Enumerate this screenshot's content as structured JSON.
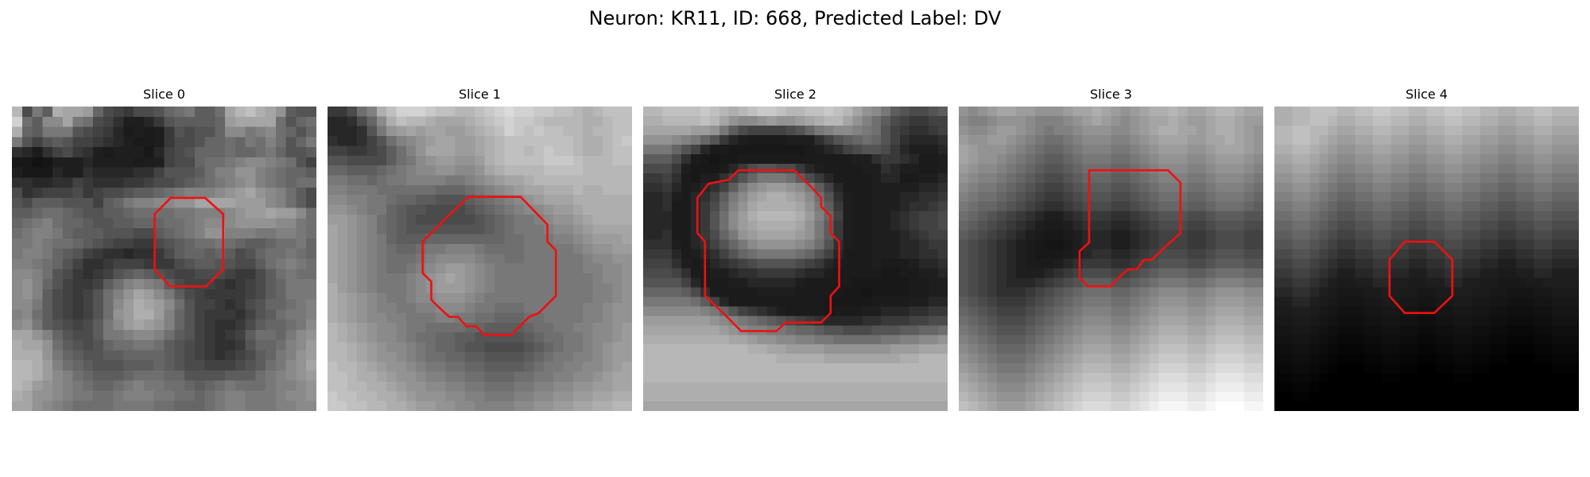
{
  "figure": {
    "title": "Neuron: KR11, ID: 668, Predicted Label: DV"
  },
  "panels": [
    {
      "title": "Slice 0",
      "contour_color": "#ee1111",
      "image": [
        "RFKHQPPOIFEDFFGIJKHHJPRSQPNHGG",
        "UJHMMPKJFECAABDGHHHHIOPPPPJGIJ",
        "QIHKKKGFEDB9A9ADGFGGIMMKLMJIGI",
        "KGEGHGEEDCBA99ADFFGIIJIKJLJGIK",
        "CB9CEFDCA9AAA8BEFGIIIJIIJKIGGH",
        "8867AAABAAAA9AAEFFIJJKLMMLKJGE",
        "A888BAACBBBBCCEGGGHJLLNNLKJIIH",
        "CCBBCCEDCCCDDEFFGHIJKLMNLKJIJJ",
        "FCDEEEFDEFFGHHIJKLLLMNOPNMLJHF",
        "GFHHHGGGEHIKLLMMNNPPPPOOOMLJHF",
        "HHIJJIHGGHHIJJJJKKLLLMNOOPOOMJ",
        "IJKLJIIHGGHHIIIJJKLMMMNNNNMMKJ",
        "JKLLKIHHHGGGFFHIJKLNNLLLKKLLKJ",
        "KKLKJJIHGFEEDDFGHIJJKJIHHIJJKI",
        "KLLKIHGEDCCBCCDFHIIHIHFGIJJKJI",
        "LLKJIGECCDEEEDDDFGHHGGFFHJKLKJ",
        "MMLJGFDCDEGHIHGFEEFFFEDDFHJKJJ",
        "MNLIGEDDEHJLMLKHFEEEDCDEFHIKKK",
        "MNLHFEDEGJLNPOMKHFEDDDDEFHIKKK",
        "MMKHFEDEGJMOQPOMJGEEDCDFGIIJKL",
        "LMJHFEDEGJNOQQOLIGEDDDCEGHJKKL",
        "MNKHGFEFHKMOPONLIGEDCCDFHIIJKM",
        "PPNLIGFFHKKLMMLJHGEDCDEHJJIKMN",
        "QPPNJHGFGIJJKKJHGFEDCCDGIIJLMO",
        "QQQNKIHGGHHIIIIHGFEDCDEFHIKLNO",
        "RRQOLJIHGGGHHHIHGFFEEEFGHJKMNP",
        "RRQOMLJIHHHIJJJIIGGGGHHHJKLMNO",
        "RQONMLKJIIJKLKKJJIHIJKJJJKLLMN",
        "QPNNMLKKJJKLLLKKJJIJKLLKKKLMMN",
        "PPNMLKJJJJKKKKJJIIIJKLLKKKLLMM"
      ],
      "contour": [
        [
          16.7,
          9.6
        ],
        [
          20.3,
          9.6
        ],
        [
          22.2,
          11.3
        ],
        [
          22.2,
          17.1
        ],
        [
          20.4,
          18.9
        ],
        [
          16.6,
          18.9
        ],
        [
          15.0,
          17.1
        ],
        [
          15.0,
          11.3
        ]
      ]
    },
    {
      "title": "Slice 1",
      "contour_color": "#ee1111",
      "image": [
        "DDFJLQSUUUTSSRRSTUVUUTTSSRQRSSS",
        "BBCFIMQSRRQPPPQRSTUTTSRRRRQQRSS",
        "BBBCGKNOPOPPOOPQRSUTSTSSRRQRRSS",
        "CBBCEGJLMNOPPOOPQRSSSSSSSRQQRST",
        "EEDDEFHJLNPPPOOPQRSSRSTSSRQQRSS",
        "GGFFFFHJKMNOONNOQRSSSSTTTSRRRSS",
        "IIHHHIJKLMMNNMMNPQRRRRSSSSRRRRR",
        "KKJJIJKKLLLLKKLMNOPPQRRRRRRRRRR",
        "LLKKKJJJJJJIIIJKLMNOPPQQQRQQRRR",
        "MMLLKKJIIHHGGGHIJKLMNOPPPQQQQQQ",
        "NNMLKKIHGGFFFFGHIJKLMMNOOPQQQQQ",
        "OONMLJIHGFFFFFFGHIJKKLMNNOPQQQQ",
        "PONMLJIHGGGGGGGGHIJKKKLMMNOPPPP",
        "PONMLKIHHHIIIIIIIIJJKKKLLMNOOOP",
        "PONMLKJIIJKKLLLKJJJJKKKKKLMNNOO",
        "PONMLKJJJKLMMMMLKKJJKKKKKKLMMNN",
        "PONMLKJJKLMNOONMLKKKKKKKKKLLMMN",
        "PONMLKKKLMNOPONMLKKKKKKKKKKLMMN",
        "QONMLKKKLMNOOONMLKKKKKKKKKKLLMN",
        "QPONMLKKLMMNNNMLKKKKKKKKKKKLLMN",
        "QPONMLLKKLLMMMLKKJJJKKKKKKLLMNN",
        "QPONMMLLKKKLLKKJJIIIJJKKKKLLMNN",
        "RQPONMMLKKJJJJIIHHHHIJJKKLLMMNO",
        "RQPONMMLKJJIIHHGGGGGHIJJKKLMMNO",
        "RRQPONMMLKJIIHGGFFFFGHIJKKLMNOO",
        "RRQPONNMLKJJIIHHGGGGHIJKKLLMNOO",
        "SRRQPONNMLKKJJIIHHHHIJKKLLMMNOP",
        "SSRQQPONNMLLKKJJIIIJJKKLLMMNOPP",
        "SSRRQQPONNMMLLKKJJJKKLLMMNNOOPP",
        "TSSRRQQPONNNMMLLKKKLLMMNNOOPPQQ",
        "TTSSRRQQPOONNMMLLLLMMNNOOPPQQRR"
      ],
      "contour": [
        [
          14.8,
          9.5
        ],
        [
          20.3,
          9.5
        ],
        [
          23.1,
          12.4
        ],
        [
          23.1,
          14.2
        ],
        [
          24.0,
          15.1
        ],
        [
          24.0,
          19.9
        ],
        [
          23.1,
          20.8
        ],
        [
          22.2,
          21.7
        ],
        [
          21.2,
          22.1
        ],
        [
          19.3,
          24.0
        ],
        [
          16.5,
          24.0
        ],
        [
          15.6,
          23.1
        ],
        [
          14.6,
          23.1
        ],
        [
          13.7,
          22.1
        ],
        [
          12.8,
          22.1
        ],
        [
          11.8,
          21.2
        ],
        [
          10.9,
          20.3
        ],
        [
          10.9,
          18.4
        ],
        [
          10.0,
          17.5
        ],
        [
          10.0,
          14.2
        ],
        [
          11.3,
          12.9
        ],
        [
          12.7,
          11.5
        ]
      ]
    },
    {
      "title": "Slice 2",
      "contour_color": "#ee1111",
      "image": [
        "RRSSSSTSRQRSTTSRRSSTSRPNMKHGFFGH",
        "QQRRRRSRPNMMNONNOPQRRPNLJHFEDDEE",
        "PPPPPOONKHFEEEEFGIKLMMLKJGEDCCDE",
        "NNNMLKIGDBA9999AAACEGHIJIGECBBBC",
        "KKKIGEB99888888889ABCEFGGFDBAAAB",
        "HHHFC98788999999999999AACDDCB99A",
        "FFFDA8889BDFGGFFDBA9999AACBAA99A",
        "DDEC98AACEGIKKKJHFDB9999ABB99AAB",
        "CCDB9ABCEHKMNOONMKHEB999AAAAABBC",
        "BBCA9BCEHKMOPQQPOMJGCA99AAABBCCD",
        "BBC99BDFILNPQQQQPNKHDA99AAABCCDE",
        "BBB99BDGJMOQRRRRQOLIEA99AABCDEEF",
        "BBB99BDGJMOPQQQQPNKHDA99AABCDEEF",
        "BBC99BDFIKNOPPPPONKHDA99AAABCDEE",
        "CCCA9BCEGIKMNNNNMLJGCA99AAABBCDD",
        "DDDB9ABCEGIJKKKKJIGEB999AAABBCCD",
        "EEECA9ABCDEFGGGGFEDBA999A999ABBC",
        "FFFEC99AABCCDDDDCBBA999998899AAB",
        "GGGGEB999AABBBBBA9999988888899AA",
        "IIIIHFC99999AAAA99999887888899AA",
        "KKKKKJHEB9999999999888889999AABB",
        "MMMMMMLKIGEDCBA99998999AABBBCCDD",
        "OOOOOOONMLKJIHGFEDCBBBBCCDDDEEFF",
        "PPPPPPPPONMLLKKJIIHGGFFFGGGHHIIJ",
        "QQQQQQQQQPPONNMMLLKKJJJJJKKLLMMN",
        "RRRRRRRRRRRQQPPOOOONNNNNNNOOOPPP",
        "RRRRRRRRRRRRRRQQQQQPPPPPPPPQQRRR",
        "RRRRRRRRRRRRRRRRRRRRRRRRRRRRRRRR",
        "RRRRRRRRRRRRRRRRRRRRRRRRRRRRRRRR",
        "QQQQQQQQQQQQQQQQQQQQQQQQQQQQQQQQ",
        "QQQQQQQQQQQQQQQQQQQQQQQQQQQQQQQQ",
        "PPPPPPPPPPPPPPPPPPPPPPPPPPPPPPPP"
      ],
      "contour": [
        [
          6.9,
          8.1
        ],
        [
          9.0,
          7.7
        ],
        [
          10.0,
          6.7
        ],
        [
          15.9,
          6.7
        ],
        [
          16.9,
          7.7
        ],
        [
          17.8,
          8.6
        ],
        [
          18.7,
          9.6
        ],
        [
          18.7,
          10.5
        ],
        [
          19.7,
          11.5
        ],
        [
          19.7,
          13.3
        ],
        [
          20.6,
          14.2
        ],
        [
          20.6,
          18.9
        ],
        [
          19.7,
          19.9
        ],
        [
          19.7,
          21.7
        ],
        [
          18.7,
          22.7
        ],
        [
          15.0,
          22.7
        ],
        [
          14.0,
          23.6
        ],
        [
          10.3,
          23.6
        ],
        [
          8.4,
          21.7
        ],
        [
          6.5,
          19.9
        ],
        [
          6.5,
          14.2
        ],
        [
          5.7,
          13.3
        ],
        [
          5.7,
          9.6
        ]
      ]
    },
    {
      "title": "Slice 3",
      "contour_color": "#ee1111",
      "image": [
        "NMNOPPOONNNOPPQPONOPQQRQPPQRRQPP",
        "MLLMNNNMLLLMNOPONMNOPPQPOOPQQPOO",
        "NMMNOONMLKLLMNNNMMNOPQQPPOPQQPON",
        "ONNOONMLKJJKLMMMLLMNOPPPOOPPQPON",
        "PONNNMLKJIIJKLLLKKLMNOOONNOPPPON",
        "PONNMLKJIHHIJKKKJJKLMNNNMMNOOONM",
        "ONMMLKJIHGGHIJJJIIJKLMMMLLMNNNML",
        "NMLLKJIHGFFGHIIIHHIJKLLLKKLMMMLK",
        "MLKKJIHGFEEFGHHHGGHIJKKKJJKLLLKJ",
        "LKJJIHGFEDDEFGGGFFGHIJJJIIJKKKJI",
        "KJIIHGFEDCCDEFFFEEFGHIIIHHIJJJIH",
        "JIHGFEDCBAABCDDDCCDEFGGGFFGHHHGG",
        "IHGFEDCBA99ABCCCBBCDEFFFEEFGGGFF",
        "HGFEDCBA9889ABBBAABCDEEEDDEFFFEE",
        "GFEDCBA98778ABBBAABCDEEEDDEFFFEE",
        "GFEDCBA98889ABCCBBCDEFFFEEFGGGFF",
        "GFEDCBA999ABCDDDCCDEFGGGFFGHHHGG",
        "GFEDCBAAABCDEFFFEEFGHIIIHHIJJJII",
        "GFEDCBBBCDEFGHHHGGHIJKKKJJKLLLKK",
        "GFEDCCCDEFGHIJJJIIJKLMMMLLMNNNMM",
        "HGFEDDDEFGHIJKKKJJKLMNNNMMNOOONN",
        "IHGFEEEFGHIJKLLLKKLMNOOONNOPPPOO",
        "JIHGFFFGHIJKLMMMLLMNOPPPOOPQQQPP",
        "KJIHGGGHIJKLMNNNMMNOPQQQPPQRRRQQ",
        "LKJIHHHIJKLMNOOONNOPQRRRQQRSSSRR",
        "MLKJIIIJKLMNOPPPOOPQRSSSRRSTTTSS",
        "NMLKJJJKLMNOPQQQPPQRSTTTSSTUUUTT",
        "ONMLKKKLMNOPQRRRQQRSTUUUTTUVVVUU",
        "PONMLLLMNOPQRSSSRRSTUVVVUUVWWWVV",
        "QPONMMMNOPQRSTTTSSTUVWWWVVWXXXWW",
        "RQPONNNOPQRSTUUUTTUVWXXXWWXYYYXX",
        "SRQPOOOPQRSTUVVVUUVWXYYYXXYZZZYY"
      ],
      "contour": [
        [
          13.7,
          6.7
        ],
        [
          22.0,
          6.7
        ],
        [
          23.3,
          8.0
        ],
        [
          23.3,
          13.3
        ],
        [
          22.2,
          14.3
        ],
        [
          21.2,
          15.2
        ],
        [
          20.3,
          16.1
        ],
        [
          19.5,
          16.1
        ],
        [
          18.7,
          17.1
        ],
        [
          17.8,
          17.1
        ],
        [
          16.8,
          18.0
        ],
        [
          16.0,
          18.9
        ],
        [
          13.6,
          18.9
        ],
        [
          12.7,
          18.0
        ],
        [
          12.7,
          15.2
        ],
        [
          13.7,
          14.3
        ]
      ]
    },
    {
      "title": "Slice 4",
      "contour_color": "#ee1111",
      "image": [
        "QQRRSSSRRSSTTSSRRSSTTSSRRQQRRSSR",
        "QQRRSSRQQRRSSRRQQRRSSRRQQPPQQRRQ",
        "RRSSRRQPPQQRRQQPPQQRRQQPPOOPPQQP",
        "RRSSRQPOOPPQQPPOOPPQQPPOONNOOPPO",
        "QQRRQPONNOOPPOONNOOPPOONNMMNNOON",
        "PPQQPONMMNNOONNMMNNOONNMMLLMMNNM",
        "OOPPONMLLMMNNMMLLMMNNMMLLKKLLMML",
        "NNOONMLKKLLMMLLKKLLMMLLKKJJKKLLK",
        "MMNNMLKJJKKLLKKJJKKLLKKJJIIJJKKJ",
        "LLMMLKJIIJJKKJJIIJJKKJJIIHHIIJJI",
        "KKLLKJIHHIIJJIIHHIIJJIIHHGGHHIIH",
        "JJKKJIHGGHHIIHHGGHHIIHHGGFFGGHHG",
        "IIJJIHGFFGGHHGGFFGGHHGGFFEEFFGGF",
        "HHIIHGFEEFFGGFFEEFFGGFFEEDDEEFFE",
        "GGHHGFEDDEEFFEEDDEEFFEEDDCCDDEED",
        "FFGGFEDCCDDEEDDCCDDEEDDCCBBCCDDC",
        "EEFFEDCBBCCDDCCBBCCDDCCBBAABBCCB",
        "DDEEDCBAABBCCBBAABBCCBBAA99AABBA",
        "CCDDCBA99AABBAA99AABBAA9988899AA",
        "BBCCBA988899AA998899AA99887778899",
        "AABBA9877788998877889988776667788",
        "99AA987666778877667788776655566777",
        "8899876555667766556677665544455666",
        "778876544455665544556655443334455",
        "66776543334455443344554433222334",
        "55665432223344332233443322111223",
        "44554321112233221122332211000112",
        "33443210001122110011221100000001",
        "22332100000011000000110000000000",
        "11221000000000000000000000000000",
        "00110000000000000000000000000000",
        "00000000000000000000000000000000"
      ],
      "contour": [
        [
          13.7,
          14.2
        ],
        [
          16.8,
          14.2
        ],
        [
          18.7,
          16.1
        ],
        [
          18.7,
          19.9
        ],
        [
          16.8,
          21.7
        ],
        [
          13.7,
          21.7
        ],
        [
          12.1,
          19.9
        ],
        [
          12.1,
          16.1
        ]
      ]
    }
  ]
}
